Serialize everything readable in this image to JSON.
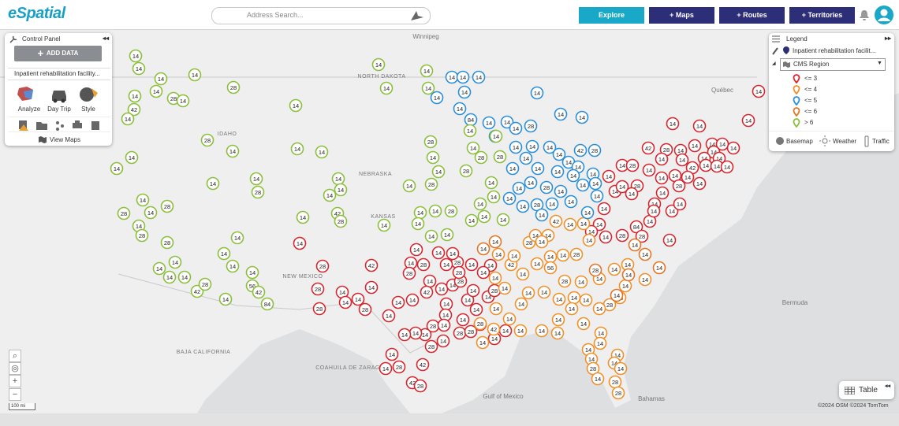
{
  "header": {
    "logo": "eSpatial",
    "search_placeholder": "Address Search...",
    "buttons": [
      "Explore",
      "+ Maps",
      "+ Routes",
      "+ Territories"
    ]
  },
  "control_panel": {
    "title": "Control Panel",
    "add_data": "ADD DATA",
    "dataset": "Inpatient rehabilitation facility...",
    "tools": [
      "Analyze",
      "Day Trip",
      "Style"
    ],
    "view_maps": "View Maps"
  },
  "legend": {
    "title": "Legend",
    "layer": "Inpatient rehabilitation facilit...",
    "group_by": "CMS Region",
    "items": [
      {
        "label": "<= 3",
        "color": "#d7262e",
        "markers": [
          14,
          14,
          14,
          14,
          42,
          28,
          14,
          14,
          14,
          14,
          14,
          14,
          14,
          14,
          14,
          42,
          14,
          14,
          14,
          14,
          14,
          28,
          14,
          14,
          14,
          14,
          14,
          28,
          14,
          14,
          28,
          14,
          14,
          14,
          14,
          14,
          14,
          14,
          14,
          28,
          84,
          14,
          14,
          14,
          14,
          14,
          28,
          14,
          28,
          28,
          28,
          42,
          14,
          14,
          14,
          28,
          14,
          14,
          14,
          14,
          14,
          28,
          28,
          14,
          14,
          42,
          14,
          14,
          14,
          28,
          28,
          14,
          14,
          14,
          14,
          14,
          28,
          14,
          28,
          14,
          14,
          14,
          28,
          14,
          14,
          14,
          28,
          42,
          14,
          42,
          28,
          14,
          28,
          14,
          14,
          14,
          28,
          14,
          28,
          14,
          14,
          14,
          14
        ]
      },
      {
        "label": "<= 4",
        "color": "#f0902a",
        "markers": [
          14,
          42,
          14,
          14,
          14,
          28,
          14,
          14,
          42,
          14,
          14,
          14,
          28,
          14,
          14,
          14,
          56,
          28,
          14,
          14,
          14,
          14,
          14,
          14,
          28,
          28,
          14,
          14,
          14,
          14,
          14,
          14,
          14,
          14,
          14,
          14,
          14,
          14,
          14,
          14,
          14,
          14,
          14,
          14,
          14,
          14,
          28,
          14,
          14,
          14,
          14,
          28,
          28,
          14,
          42,
          28,
          14
        ]
      },
      {
        "label": "<= 5",
        "color": "#2b8fd8",
        "markers": [
          14,
          14,
          14,
          14,
          14,
          84,
          14,
          14,
          14,
          28,
          14,
          14,
          14,
          14,
          14,
          14,
          14,
          14,
          14,
          42,
          28,
          14,
          14,
          14,
          14,
          14,
          14,
          14,
          14,
          14,
          28,
          14,
          14,
          14,
          14,
          14,
          14,
          28,
          14,
          14,
          14,
          14,
          14
        ]
      },
      {
        "label": "<= 6",
        "color": "#e27424",
        "markers": [
          28,
          14,
          14,
          14,
          14,
          14,
          14,
          14
        ]
      },
      {
        "label": "> 6",
        "color": "#8bbf3c",
        "markers": [
          14,
          14,
          14,
          14,
          28,
          14,
          14,
          14,
          42,
          14,
          28,
          14,
          28,
          14,
          14,
          14,
          14,
          14,
          14,
          14,
          28,
          14,
          14,
          14,
          42,
          28,
          14,
          28,
          14,
          28,
          14,
          28,
          28,
          14,
          14,
          14,
          14,
          14,
          14,
          14,
          14,
          42,
          28,
          14,
          56,
          42,
          84,
          14,
          14,
          14,
          14,
          14,
          14,
          28,
          14,
          14,
          28,
          28,
          14,
          14,
          14,
          28,
          14,
          28,
          14,
          14,
          14,
          14,
          14,
          28,
          14,
          14,
          14,
          14,
          14,
          14
        ]
      }
    ],
    "tabs": [
      "Basemap",
      "Weather",
      "Traffic"
    ]
  },
  "map": {
    "places": [
      "Winnipeg",
      "NORTH DAKOTA",
      "IDAHO",
      "NEBRASKA",
      "KANSAS",
      "NEW MEXICO",
      "BAJA CALIFORNIA",
      "COAHUILA DE ZARAGOZA",
      "Gulf of Mexico",
      "Bermuda",
      "Bahamas",
      "Québec"
    ],
    "scale": "100 mi",
    "attribution": "©2024 OSM ©2024 TomTom"
  },
  "table_button": "Table"
}
